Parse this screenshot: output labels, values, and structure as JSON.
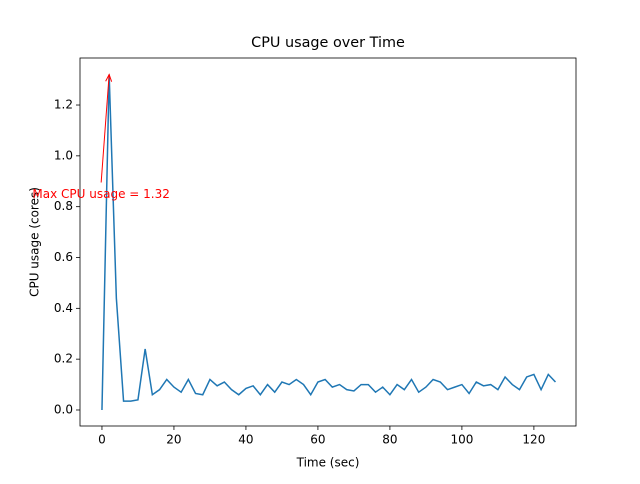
{
  "chart_data": {
    "type": "line",
    "title": "CPU usage over Time",
    "xlabel": "Time (sec)",
    "ylabel": "CPU usage (cores)",
    "x": [
      0,
      2,
      4,
      6,
      8,
      10,
      12,
      14,
      16,
      18,
      20,
      22,
      24,
      26,
      28,
      30,
      32,
      34,
      36,
      38,
      40,
      42,
      44,
      46,
      48,
      50,
      52,
      54,
      56,
      58,
      60,
      62,
      64,
      66,
      68,
      70,
      72,
      74,
      76,
      78,
      80,
      82,
      84,
      86,
      88,
      90,
      92,
      94,
      96,
      98,
      100,
      102,
      104,
      106,
      108,
      110,
      112,
      114,
      116,
      118,
      120,
      122,
      124,
      126
    ],
    "series": [
      {
        "color": "#1f77b4",
        "values": [
          0,
          1.32,
          0.44,
          0.035,
          0.035,
          0.04,
          0.24,
          0.06,
          0.08,
          0.12,
          0.09,
          0.07,
          0.12,
          0.065,
          0.06,
          0.12,
          0.095,
          0.11,
          0.08,
          0.06,
          0.085,
          0.095,
          0.06,
          0.1,
          0.07,
          0.11,
          0.1,
          0.12,
          0.1,
          0.06,
          0.11,
          0.12,
          0.09,
          0.1,
          0.08,
          0.075,
          0.1,
          0.1,
          0.07,
          0.09,
          0.06,
          0.1,
          0.08,
          0.12,
          0.07,
          0.09,
          0.12,
          0.11,
          0.08,
          0.09,
          0.1,
          0.065,
          0.11,
          0.095,
          0.1,
          0.08,
          0.13,
          0.1,
          0.08,
          0.13,
          0.14,
          0.08,
          0.14,
          0.11
        ]
      }
    ],
    "xlim": [
      -6.1,
      131.7
    ],
    "ylim": [
      -0.063,
      1.385
    ],
    "xticks": [
      0,
      20,
      40,
      60,
      80,
      100,
      120
    ],
    "yticks": [
      {
        "value": 0,
        "label": "0.0"
      },
      0.2,
      0.4,
      0.6,
      0.8,
      {
        "value": 1,
        "label": "1.0"
      },
      1.2
    ],
    "annotation": {
      "text": "Max CPU usage = 1.32",
      "color": "red"
    }
  }
}
